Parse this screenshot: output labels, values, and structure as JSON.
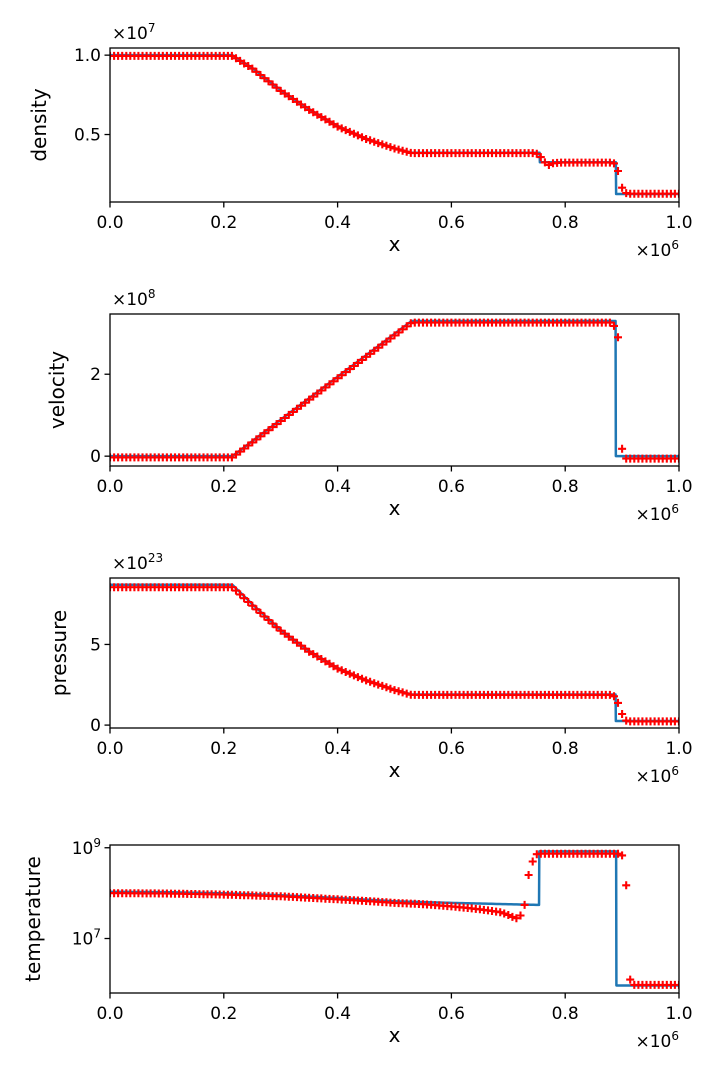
{
  "figure_type": "4-panel shock tube profile comparison",
  "styles": {
    "line_color": "#1f77b4",
    "marker_color": "#ff0000",
    "marker_glyph": "+",
    "axes_color": "#000000",
    "background": "#ffffff"
  },
  "chart_data": {
    "type": "line",
    "grid": false,
    "legend": "none",
    "n_markers": 141,
    "x_axis": {
      "label": "x",
      "range": [
        0,
        1
      ],
      "scale_exponent": 6,
      "offset_label": {
        "base": "×10",
        "sup": "6"
      },
      "ticks": [
        0.0,
        0.2,
        0.4,
        0.6,
        0.8,
        1.0
      ],
      "tick_labels": [
        "0.0",
        "0.2",
        "0.4",
        "0.6",
        "0.8",
        "1.0"
      ]
    },
    "subplots": [
      {
        "ylabel": "density",
        "yscale": "linear",
        "y_scale_exponent": 7,
        "y_offset_label": {
          "base": "×10",
          "sup": "7"
        },
        "ylim": [
          0.075,
          1.045
        ],
        "y_ticks": [
          {
            "v": 0.5,
            "label": "0.5"
          },
          {
            "v": 1.0,
            "label": "1.0"
          }
        ],
        "line": {
          "x": [
            0,
            0.215,
            0.25,
            0.3,
            0.35,
            0.4,
            0.45,
            0.5,
            0.53,
            0.755,
            0.7555,
            0.889,
            0.8895,
            1.0
          ],
          "y": [
            1.0,
            1.0,
            0.92,
            0.78,
            0.66,
            0.555,
            0.475,
            0.415,
            0.385,
            0.385,
            0.325,
            0.325,
            0.125,
            0.125
          ]
        },
        "markers": {
          "x": [
            0,
            0.215,
            0.25,
            0.3,
            0.35,
            0.4,
            0.45,
            0.5,
            0.53,
            0.748,
            0.755,
            0.762,
            0.769,
            0.776,
            0.79,
            0.882,
            0.8857,
            0.8929,
            0.9,
            0.9071,
            0.9143,
            1.0
          ],
          "y": [
            0.995,
            0.995,
            0.915,
            0.775,
            0.655,
            0.55,
            0.472,
            0.412,
            0.383,
            0.383,
            0.368,
            0.335,
            0.303,
            0.318,
            0.323,
            0.323,
            0.318,
            0.27,
            0.165,
            0.131,
            0.127,
            0.127
          ]
        }
      },
      {
        "ylabel": "velocity",
        "yscale": "linear",
        "y_scale_exponent": 8,
        "y_offset_label": {
          "base": "×10",
          "sup": "8"
        },
        "ylim": [
          -0.24,
          3.47
        ],
        "y_ticks": [
          {
            "v": 0.0,
            "label": "0"
          },
          {
            "v": 2.0,
            "label": "2"
          }
        ],
        "line": {
          "x": [
            0,
            0.215,
            0.53,
            0.8885,
            0.889,
            1.0
          ],
          "y": [
            0,
            0,
            3.3,
            3.3,
            0.0,
            0.0
          ]
        },
        "markers": {
          "x": [
            0,
            0.215,
            0.53,
            0.88,
            0.8857,
            0.8929,
            0.9,
            0.9071,
            1.0
          ],
          "y": [
            -0.03,
            -0.03,
            3.26,
            3.26,
            3.18,
            2.9,
            0.18,
            -0.06,
            -0.06
          ]
        }
      },
      {
        "ylabel": "pressure",
        "yscale": "linear",
        "y_scale_exponent": 23,
        "y_offset_label": {
          "base": "×10",
          "sup": "23"
        },
        "ylim": [
          -0.18,
          9.12
        ],
        "y_ticks": [
          {
            "v": 0.0,
            "label": "0"
          },
          {
            "v": 5.0,
            "label": "5"
          }
        ],
        "line": {
          "x": [
            0,
            0.215,
            0.25,
            0.3,
            0.35,
            0.4,
            0.45,
            0.5,
            0.53,
            0.8885,
            0.889,
            1.0
          ],
          "y": [
            8.7,
            8.7,
            7.5,
            5.9,
            4.6,
            3.55,
            2.8,
            2.2,
            1.9,
            1.9,
            0.25,
            0.25
          ]
        },
        "markers": {
          "x": [
            0,
            0.215,
            0.25,
            0.3,
            0.35,
            0.4,
            0.45,
            0.5,
            0.53,
            0.882,
            0.8893,
            0.8964,
            0.9036,
            0.9107,
            1.0
          ],
          "y": [
            8.55,
            8.55,
            7.4,
            5.85,
            4.55,
            3.5,
            2.77,
            2.17,
            1.87,
            1.87,
            1.7,
            1.05,
            0.33,
            0.23,
            0.23
          ]
        }
      },
      {
        "ylabel": "temperature",
        "yscale": "log",
        "y_scale_exponent": null,
        "y_offset_label": null,
        "ylim": [
          630000,
          1150000000
        ],
        "y_ticks": [
          {
            "v": 10000000,
            "base": "10",
            "sup": "7"
          },
          {
            "v": 1000000000,
            "base": "10",
            "sup": "9"
          }
        ],
        "line": {
          "x": [
            0,
            0.1,
            0.2,
            0.3,
            0.4,
            0.5,
            0.6,
            0.7,
            0.754,
            0.7545,
            0.8895,
            0.89,
            1.0
          ],
          "y": [
            107000000.0,
            105000000.0,
            99000000.0,
            90000000.0,
            78000000.0,
            66000000.0,
            61000000.0,
            57000000.0,
            55000000.0,
            830000000.0,
            830000000.0,
            920000.0,
            920000.0
          ]
        },
        "markers": {
          "x": [
            0,
            0.1,
            0.2,
            0.3,
            0.4,
            0.5,
            0.55,
            0.6,
            0.65,
            0.6857,
            0.7,
            0.7071,
            0.7143,
            0.7214,
            0.7286,
            0.7357,
            0.7429,
            0.75,
            0.7571,
            0.8929,
            0.9,
            0.9071,
            0.9143,
            1.0
          ],
          "y": [
            100000000.0,
            98000000.0,
            93000000.0,
            85000000.0,
            73000000.0,
            61000000.0,
            57000000.0,
            51000000.0,
            44000000.0,
            38000000.0,
            33000000.0,
            30000000.0,
            28000000.0,
            32000000.0,
            55000000.0,
            250000000.0,
            500000000.0,
            720000000.0,
            740000000.0,
            740000000.0,
            680000000.0,
            150000000.0,
            950000.0,
            950000.0
          ]
        }
      }
    ]
  }
}
